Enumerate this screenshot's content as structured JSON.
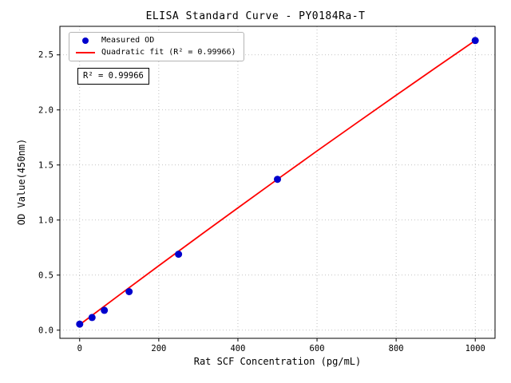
{
  "chart_data": {
    "type": "scatter",
    "title": "ELISA Standard Curve - PY0184Ra-T",
    "xlabel": "Rat SCF Concentration (pg/mL)",
    "ylabel": "OD Value(450nm)",
    "xlim": [
      -50,
      1050
    ],
    "ylim": [
      -0.074,
      2.759
    ],
    "xticks": [
      0,
      200,
      400,
      600,
      800,
      1000
    ],
    "yticks": [
      0,
      0.5,
      1,
      1.5,
      2,
      2.5
    ],
    "grid": true,
    "grid_color": "#b0b0b0",
    "legend": {
      "position": "upper-left"
    },
    "annotation": "R² = 0.99966",
    "series": [
      {
        "name": "Measured OD",
        "type": "scatter",
        "color": "#0000cd",
        "x": [
          0,
          31.25,
          62.5,
          125,
          250,
          500,
          1000
        ],
        "y": [
          0.055,
          0.115,
          0.18,
          0.35,
          0.69,
          1.37,
          2.63
        ]
      },
      {
        "name": "Quadratic fit (R² = 0.99966)",
        "type": "line",
        "color": "#ff0000",
        "x": [
          0,
          100,
          200,
          300,
          400,
          500,
          600,
          700,
          800,
          900,
          1000
        ],
        "y": [
          0.05,
          0.319,
          0.585,
          0.849,
          1.111,
          1.37,
          1.627,
          1.881,
          2.133,
          2.383,
          2.63
        ]
      }
    ]
  }
}
